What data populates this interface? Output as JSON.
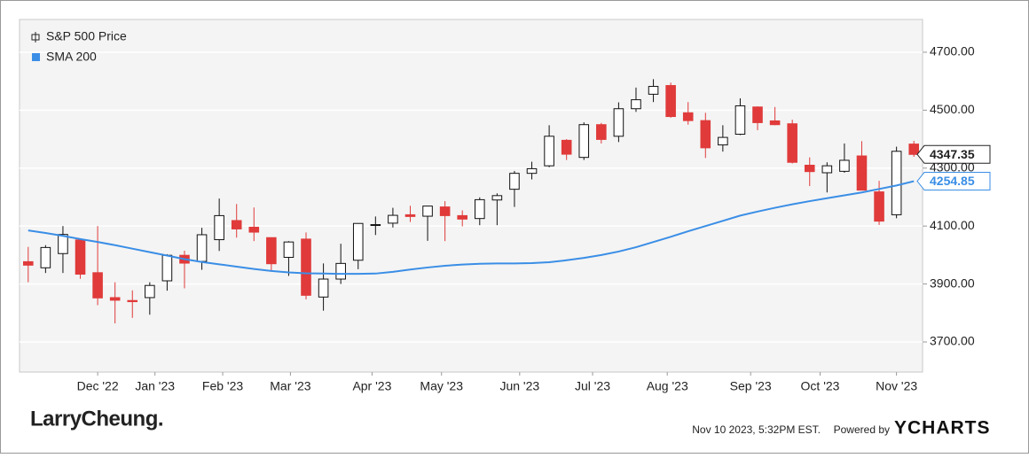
{
  "chart_data": {
    "type": "candlestick",
    "categories": [
      null,
      null,
      null,
      null,
      null,
      null,
      null,
      null,
      null,
      null,
      null,
      null,
      null,
      null,
      null,
      null,
      null,
      null,
      null,
      null,
      null,
      null,
      null,
      null,
      null,
      null,
      null,
      null,
      null,
      null,
      null,
      null,
      null,
      null,
      null,
      null,
      null,
      null,
      null,
      null,
      null,
      null,
      null,
      null,
      null,
      null,
      null,
      null,
      null,
      null,
      null,
      null
    ],
    "series": [
      {
        "name": "S&P 500 Price",
        "type": "candlestick",
        "up_color": "#111111",
        "down_color": "#e03a3a",
        "open": [
          3977,
          3956,
          4005,
          4052,
          3939,
          3853,
          3843,
          3853,
          3911,
          3999,
          3978,
          4053,
          4119,
          4096,
          4060,
          3992,
          4055,
          3855,
          3917,
          3982,
          4102,
          4110,
          4139,
          4134,
          4166,
          4136,
          4126,
          4190,
          4227,
          4282,
          4308,
          4396,
          4337,
          4450,
          4410,
          4505,
          4555,
          4585,
          4491,
          4464,
          4380,
          4417,
          4511,
          4463,
          4453,
          4310,
          4284,
          4289,
          4342,
          4218,
          4139,
          4383
        ],
        "high": [
          4028,
          4034,
          4100,
          4052,
          4100,
          3906,
          3878,
          3906,
          4003,
          4015,
          4094,
          4195,
          4176,
          4164,
          4060,
          4048,
          4078,
          3971,
          4039,
          4110,
          4133,
          4163,
          4170,
          4170,
          4186,
          4154,
          4199,
          4213,
          4290,
          4322,
          4448,
          4400,
          4458,
          4456,
          4527,
          4578,
          4607,
          4595,
          4528,
          4491,
          4448,
          4541,
          4513,
          4511,
          4467,
          4337,
          4320,
          4385,
          4393,
          4256,
          4374,
          4394
        ],
        "low": [
          3906,
          3938,
          3938,
          3918,
          3827,
          3764,
          3783,
          3794,
          3877,
          3885,
          3949,
          4014,
          4060,
          4048,
          3944,
          3928,
          3847,
          3808,
          3900,
          3951,
          4069,
          4095,
          4114,
          4049,
          4048,
          4099,
          4103,
          4103,
          4166,
          4261,
          4303,
          4328,
          4328,
          4385,
          4390,
          4494,
          4528,
          4474,
          4450,
          4335,
          4357,
          4414,
          4431,
          4448,
          4316,
          4238,
          4216,
          4284,
          4223,
          4104,
          4127,
          4339
        ],
        "close": [
          3965,
          4026,
          4071,
          3934,
          3852,
          3844,
          3839,
          3895,
          3999,
          3972,
          4070,
          4136,
          4090,
          4079,
          3970,
          4045,
          3861,
          3917,
          3971,
          4109,
          4105,
          4137,
          4133,
          4169,
          4136,
          4124,
          4191,
          4205,
          4282,
          4298,
          4410,
          4348,
          4450,
          4399,
          4505,
          4536,
          4582,
          4478,
          4464,
          4370,
          4406,
          4515,
          4457,
          4450,
          4320,
          4288,
          4308,
          4327,
          4224,
          4117,
          4358,
          4347.35
        ]
      },
      {
        "name": "SMA 200",
        "type": "line",
        "color": "#3a8ee6",
        "values": [
          4085,
          4076,
          4066,
          4055,
          4045,
          4034,
          4022,
          4010,
          3998,
          3986,
          3976,
          3968,
          3960,
          3952,
          3945,
          3940,
          3937,
          3936,
          3935,
          3935,
          3936,
          3942,
          3950,
          3957,
          3963,
          3967,
          3970,
          3971,
          3971,
          3972,
          3975,
          3982,
          3990,
          4000,
          4012,
          4027,
          4045,
          4063,
          4082,
          4100,
          4118,
          4136,
          4150,
          4163,
          4175,
          4186,
          4196,
          4206,
          4216,
          4228,
          4240,
          4254.85
        ]
      }
    ],
    "ylim": [
      3596,
      4813
    ],
    "yticks": [
      {
        "value": 3700,
        "label": "3700.00"
      },
      {
        "value": 3900,
        "label": "3900.00"
      },
      {
        "value": 4100,
        "label": "4100.00"
      },
      {
        "value": 4300,
        "label": "4300.00"
      },
      {
        "value": 4500,
        "label": "4500.00"
      },
      {
        "value": 4700,
        "label": "4700.00"
      }
    ],
    "xticks": [
      {
        "value": 4.0,
        "label": "Dec '22"
      },
      {
        "value": 7.3,
        "label": "Jan '23"
      },
      {
        "value": 11.2,
        "label": "Feb '23"
      },
      {
        "value": 15.1,
        "label": "Mar '23"
      },
      {
        "value": 19.8,
        "label": "Apr '23"
      },
      {
        "value": 23.8,
        "label": "May '23"
      },
      {
        "value": 28.3,
        "label": "Jun '23"
      },
      {
        "value": 32.5,
        "label": "Jul '23"
      },
      {
        "value": 36.8,
        "label": "Aug '23"
      },
      {
        "value": 41.6,
        "label": "Sep '23"
      },
      {
        "value": 45.6,
        "label": "Oct '23"
      },
      {
        "value": 50.0,
        "label": "Nov '23"
      }
    ],
    "grid": true,
    "legend": "top-left",
    "brand": "LarryCheung.",
    "timestamp": "Nov 10 2023, 5:32PM EST.",
    "powered_by": "Powered by",
    "provider": "YCHARTS"
  }
}
